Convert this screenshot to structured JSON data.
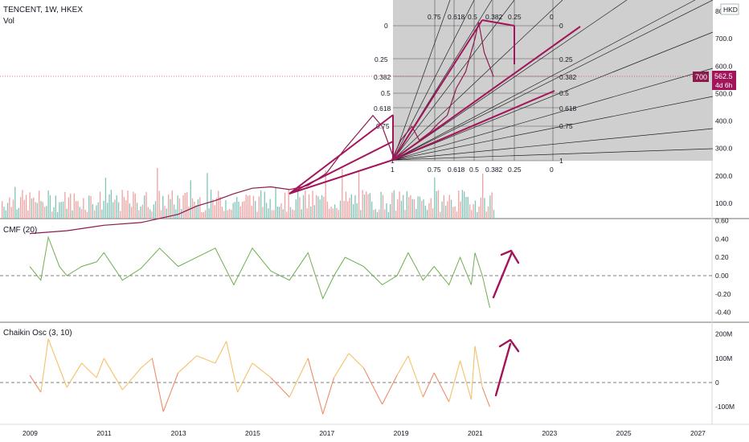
{
  "header": {
    "symbol_line": "TENCENT, 1W, HKEX",
    "vol_label": "Vol",
    "currency": "HKD"
  },
  "price_tags": {
    "left": "700",
    "right": "562.5",
    "countdown": "4d 6h"
  },
  "panes": {
    "cmf_title": "CMF (20)",
    "chaikin_title": "Chaikin Osc (3, 10)"
  },
  "colors": {
    "accent": "#a3155a",
    "cmf_line": "#6fae4f",
    "chaikin_pos": "#f5c069",
    "chaikin_neg": "#f08a6a",
    "gann_fill": "#cfcfcf",
    "vol_up": "#7fc4b6",
    "vol_down": "#f2a0a0"
  },
  "chart_data": [
    {
      "type": "line",
      "title": "TENCENT, 1W, HKEX",
      "ylabel": "HKD",
      "x": [
        2009.0,
        2010.0,
        2011.0,
        2012.0,
        2013.0,
        2013.5,
        2014.0,
        2014.5,
        2015.0,
        2015.5,
        2016.0,
        2016.5,
        2017.0,
        2017.5,
        2018.0,
        2018.25,
        2018.5,
        2018.8,
        2019.0,
        2019.3,
        2019.5,
        2019.8,
        2020.0,
        2020.25,
        2020.5,
        2020.75,
        2021.0,
        2021.1,
        2021.25,
        2021.5
      ],
      "values": [
        -10,
        0,
        20,
        30,
        60,
        90,
        110,
        135,
        155,
        160,
        150,
        165,
        210,
        300,
        380,
        420,
        380,
        270,
        330,
        380,
        330,
        360,
        390,
        420,
        520,
        580,
        700,
        760,
        650,
        562
      ],
      "ylim": [
        20,
        820
      ],
      "yticks": [
        "100.0",
        "200.0",
        "300.0",
        "400.0",
        "500.0",
        "600.0",
        "700.0",
        "800.0"
      ],
      "volume": {
        "label": "Vol"
      },
      "gann_box": {
        "top_levels": [
          "0.75",
          "0.618",
          "0.5",
          "0.382",
          "0.25",
          "0"
        ],
        "bottom_levels": [
          "1",
          "0.75",
          "0.618",
          "0.5",
          "0.382",
          "0.25",
          "0"
        ],
        "left_levels": [
          "0",
          "0.25",
          "0.382",
          "0.5",
          "0.618",
          "0.75",
          "1"
        ],
        "right_levels": [
          "0",
          "0.25",
          "0.382",
          "0.5",
          "0.618",
          "0.75",
          "1"
        ]
      }
    },
    {
      "type": "line",
      "title": "CMF (20)",
      "ylim": [
        -0.5,
        0.6
      ],
      "yticks": [
        "0.60",
        "0.40",
        "0.20",
        "0.00",
        "-0.20",
        "-0.40"
      ],
      "x": [
        2009.0,
        2009.3,
        2009.5,
        2009.8,
        2010.0,
        2010.4,
        2010.8,
        2011.0,
        2011.5,
        2012.0,
        2012.5,
        2013.0,
        2013.5,
        2014.0,
        2014.5,
        2015.0,
        2015.5,
        2016.0,
        2016.5,
        2016.9,
        2017.2,
        2017.5,
        2018.0,
        2018.5,
        2018.9,
        2019.2,
        2019.6,
        2019.9,
        2020.3,
        2020.6,
        2020.9,
        2021.0,
        2021.2,
        2021.4
      ],
      "values": [
        0.1,
        -0.05,
        0.42,
        0.1,
        0.0,
        0.1,
        0.15,
        0.25,
        -0.05,
        0.08,
        0.3,
        0.1,
        0.2,
        0.3,
        -0.1,
        0.3,
        0.05,
        -0.05,
        0.25,
        -0.25,
        0.0,
        0.2,
        0.1,
        -0.1,
        0.0,
        0.25,
        -0.05,
        0.1,
        -0.1,
        0.2,
        -0.1,
        0.25,
        0.0,
        -0.35
      ]
    },
    {
      "type": "area",
      "title": "Chaikin Osc (3, 10)",
      "ylim": [
        -150,
        240
      ],
      "yticks": [
        "200M",
        "100M",
        "0",
        "-100M"
      ],
      "xticks": [
        "2009",
        "2011",
        "2013",
        "2015",
        "2017",
        "2019",
        "2021",
        "2023",
        "2025",
        "2027"
      ],
      "x": [
        2009.0,
        2009.3,
        2009.5,
        2009.8,
        2010.0,
        2010.4,
        2010.8,
        2011.0,
        2011.5,
        2012.0,
        2012.3,
        2012.6,
        2013.0,
        2013.5,
        2014.0,
        2014.3,
        2014.6,
        2015.0,
        2015.5,
        2016.0,
        2016.5,
        2016.9,
        2017.2,
        2017.6,
        2018.0,
        2018.5,
        2018.9,
        2019.2,
        2019.6,
        2019.9,
        2020.3,
        2020.6,
        2020.9,
        2021.0,
        2021.2,
        2021.4
      ],
      "values": [
        30,
        -40,
        180,
        60,
        -20,
        80,
        20,
        100,
        -30,
        60,
        100,
        -120,
        40,
        110,
        80,
        170,
        -40,
        80,
        20,
        -60,
        100,
        -130,
        20,
        120,
        60,
        -90,
        30,
        110,
        -60,
        40,
        -80,
        90,
        -70,
        150,
        -20,
        -100
      ]
    }
  ]
}
